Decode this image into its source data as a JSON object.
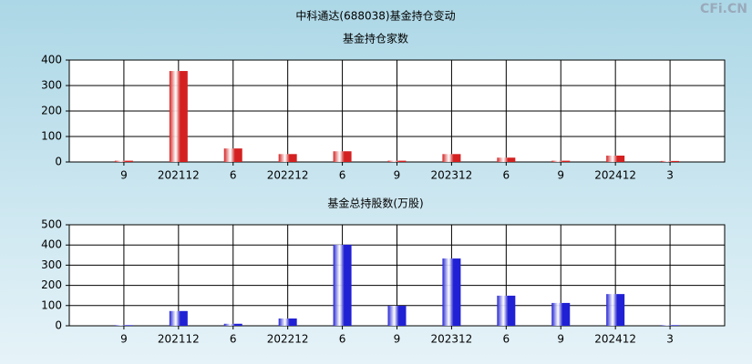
{
  "title": "中科通达(688038)基金持仓变动",
  "watermark": "CFi.CN",
  "chart_data": [
    {
      "type": "bar",
      "title": "基金持仓家数",
      "categories": [
        "9",
        "202112",
        "6",
        "202212",
        "6",
        "9",
        "202312",
        "6",
        "9",
        "202412",
        "3"
      ],
      "values": [
        5,
        357,
        53,
        31,
        42,
        5,
        31,
        17,
        5,
        25,
        4
      ],
      "color": "#d42020",
      "ylim": [
        0,
        400
      ],
      "yticks": [
        0,
        100,
        200,
        300,
        400
      ],
      "grid": true
    },
    {
      "type": "bar",
      "title": "基金总持股数(万股)",
      "categories": [
        "9",
        "202112",
        "6",
        "202212",
        "6",
        "9",
        "202312",
        "6",
        "9",
        "202412",
        "3"
      ],
      "values": [
        3,
        73,
        10,
        36,
        401,
        99,
        333,
        149,
        113,
        157,
        3
      ],
      "color": "#2020d4",
      "ylim": [
        0,
        500
      ],
      "yticks": [
        0,
        100,
        200,
        300,
        400,
        500
      ],
      "grid": true
    }
  ]
}
